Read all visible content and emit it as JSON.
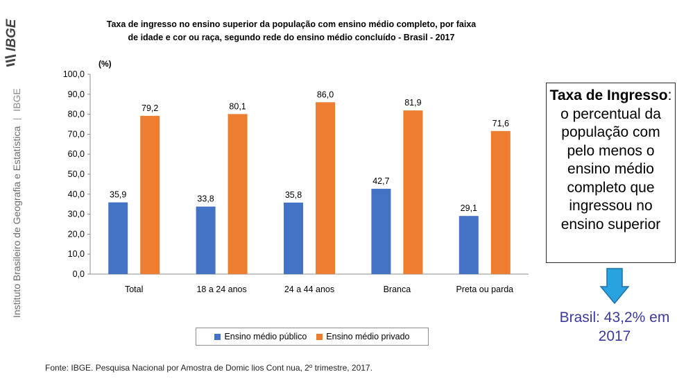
{
  "brand": {
    "logo_text": "IBGE",
    "logo_icon": "ibge-logo-icon",
    "vertical_label": "Instituto Brasileiro de Geografia e Estatística",
    "vertical_abbr": "IBGE"
  },
  "chart_data": {
    "type": "bar",
    "title": "Taxa de ingresso no ensino superior da população com ensino médio completo, por faixa de idade e cor ou raça, segundo rede do ensino médio concluído  - Brasil - 2017",
    "title_lines": [
      "Taxa de ingresso no ensino superior da população com ensino médio completo, por faixa",
      "de idade e cor ou raça, segundo rede do ensino médio concluído  - Brasil - 2017"
    ],
    "ylabel": "(%)",
    "xlabel": "",
    "ylim": [
      0,
      100
    ],
    "ytick_step": 10,
    "yticks": [
      "0,0",
      "10,0",
      "20,0",
      "30,0",
      "40,0",
      "50,0",
      "60,0",
      "70,0",
      "80,0",
      "90,0",
      "100,0"
    ],
    "grid": false,
    "categories": [
      "Total",
      "18 a 24 anos",
      "24 a 44 anos",
      "Branca",
      "Preta ou parda"
    ],
    "series": [
      {
        "name": "Ensino médio público",
        "color": "#4472c4",
        "values": [
          35.9,
          33.8,
          35.8,
          42.7,
          29.1
        ],
        "labels": [
          "35,9",
          "33,8",
          "35,8",
          "42,7",
          "29,1"
        ]
      },
      {
        "name": "Ensino médio privado",
        "color": "#ed7d31",
        "values": [
          79.2,
          80.1,
          86.0,
          81.9,
          71.6
        ],
        "labels": [
          "79,2",
          "80,1",
          "86,0",
          "81,9",
          "71,6"
        ]
      }
    ],
    "legend_position": "bottom"
  },
  "source": "Fonte: IBGE. Pesquisa Nacional por Amostra de Domic lios Cont nua, 2º trimestre, 2017.",
  "definition": {
    "term": "Taxa de Ingresso",
    "text": ": o percentual da população com pelo menos o ensino médio completo que ingressou no ensino superior"
  },
  "arrow_icon": "down-arrow-icon",
  "arrow_color": "#29a3e0",
  "result_text": "Brasil: 43,2% em 2017"
}
